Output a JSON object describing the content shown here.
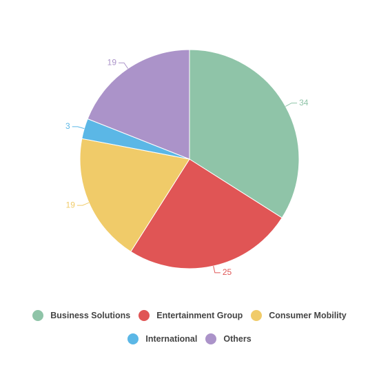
{
  "chart_data": {
    "type": "pie",
    "categories": [
      "Business Solutions",
      "Entertainment Group",
      "Consumer Mobility",
      "International",
      "Others"
    ],
    "values": [
      34,
      25,
      19,
      3,
      19
    ],
    "colors": [
      "#8fc4a8",
      "#e05555",
      "#f0cb69",
      "#5bb7e6",
      "#ab93c9"
    ],
    "legend": "bottom"
  }
}
